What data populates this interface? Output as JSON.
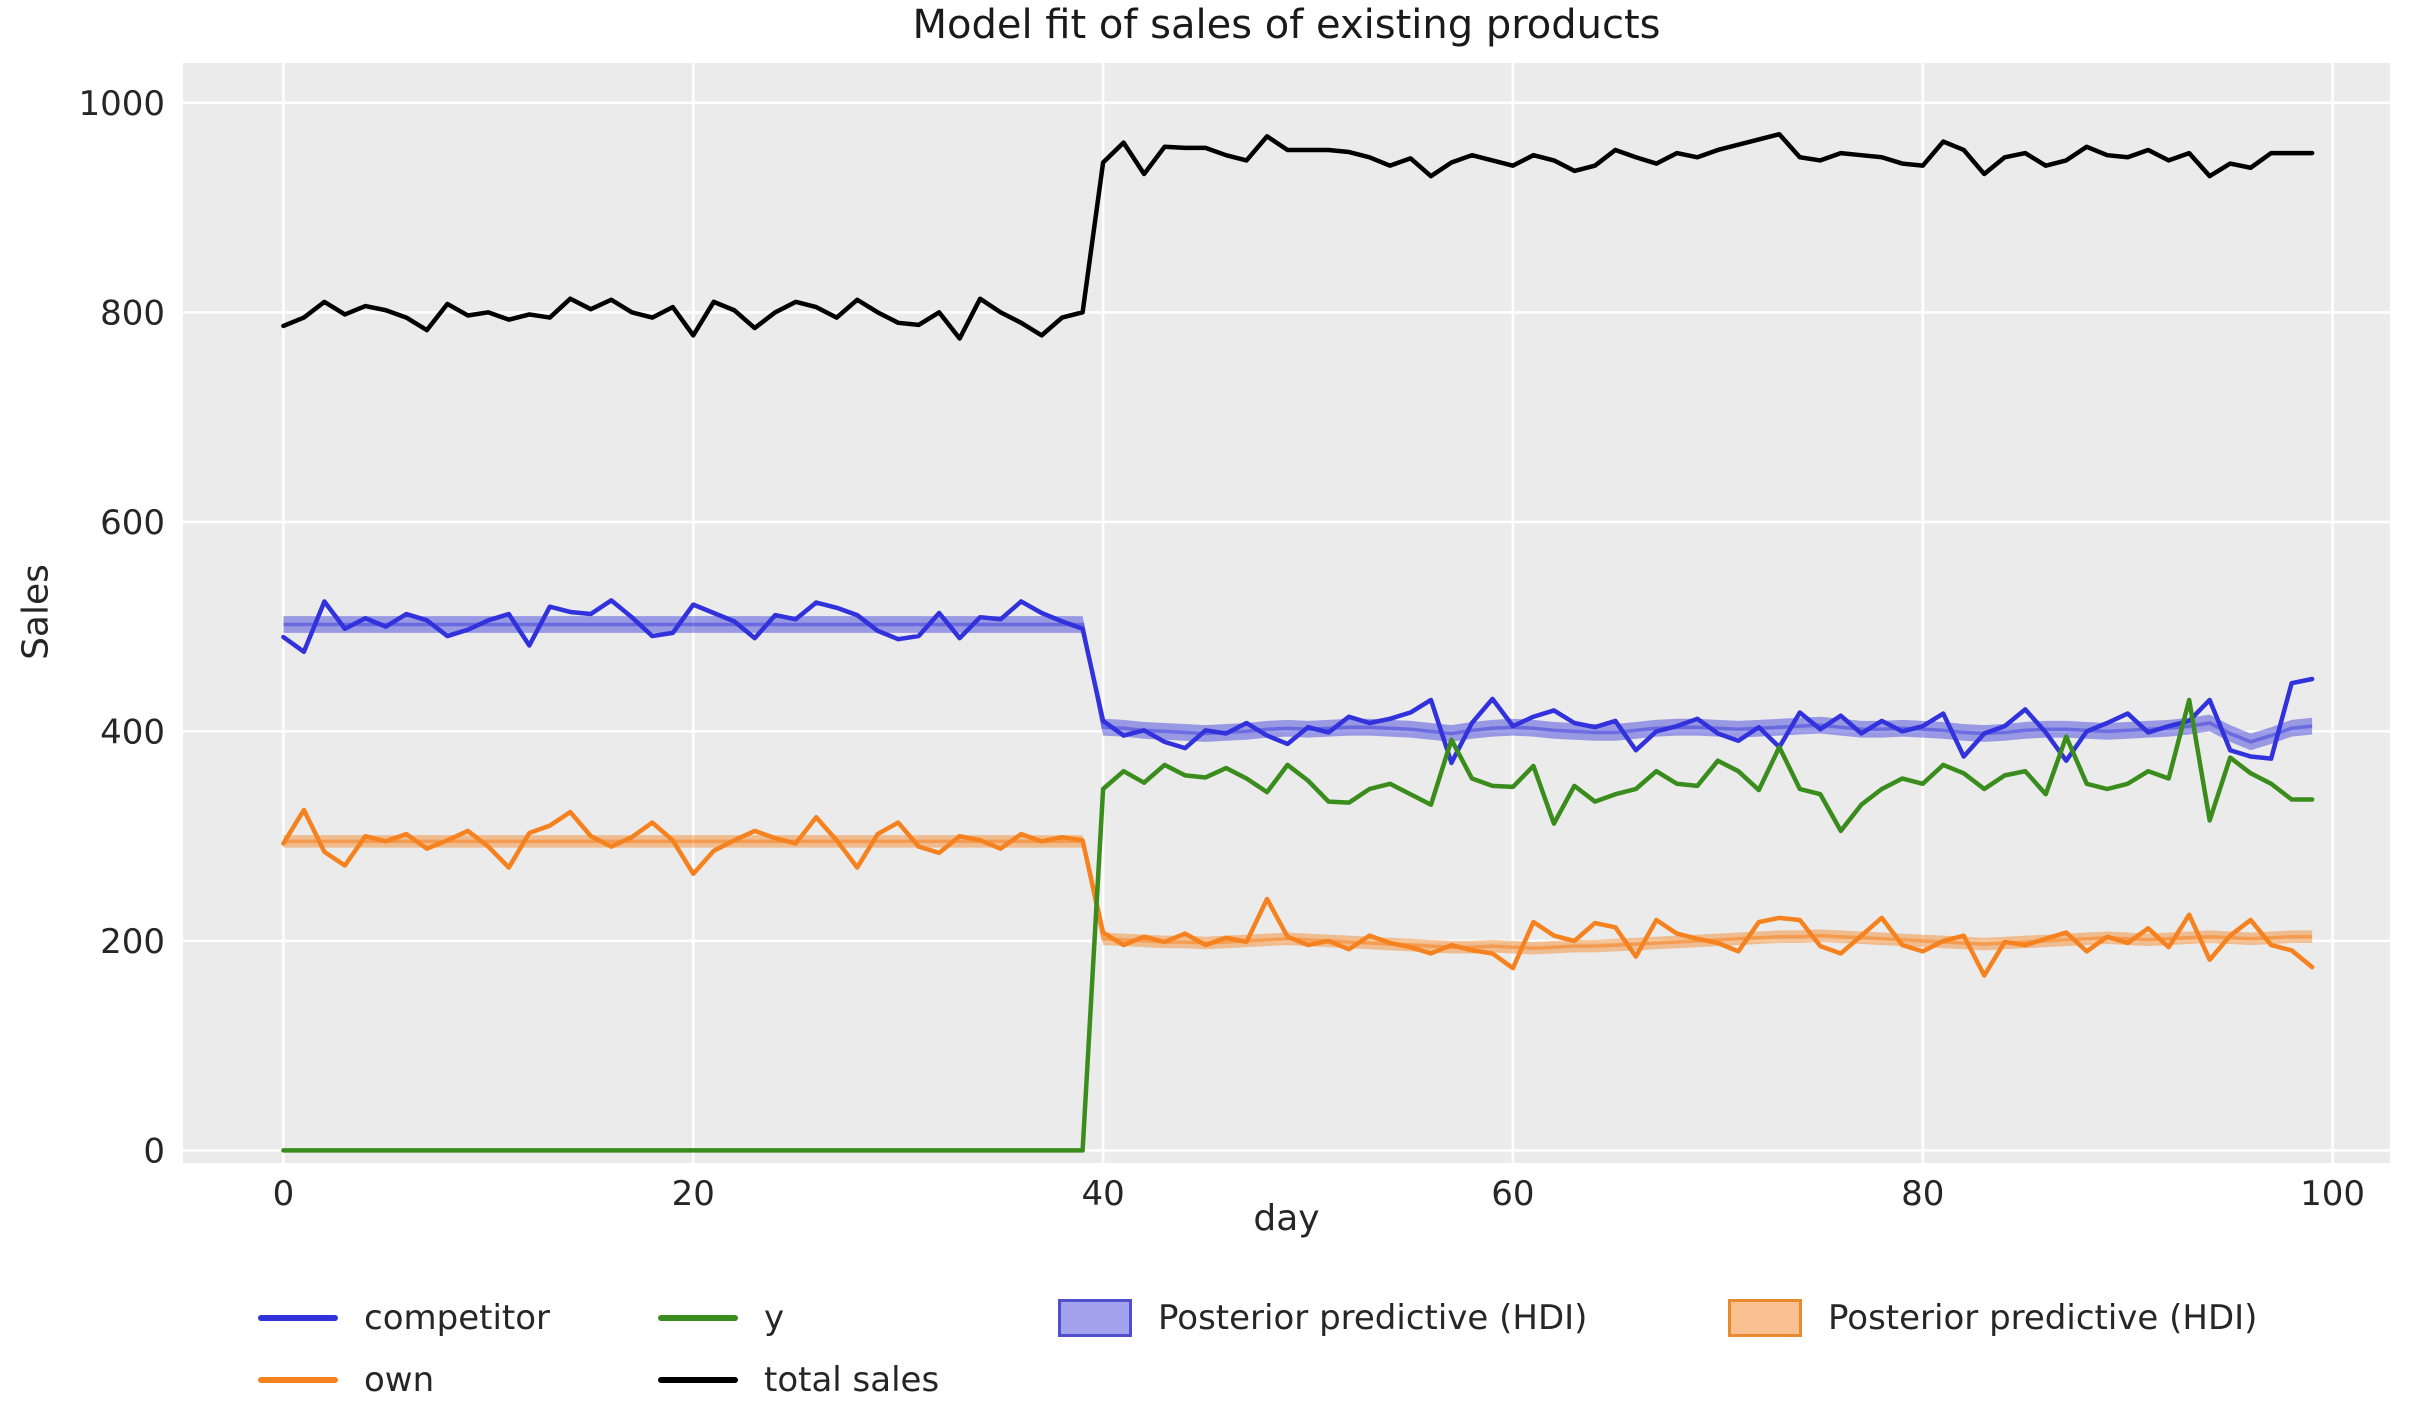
{
  "title": "Model fit of sales of existing products",
  "chart_data": {
    "type": "line",
    "title": "Model fit of sales of existing products",
    "xlabel": "day",
    "ylabel": "Sales",
    "x_ticks": [
      0,
      20,
      40,
      60,
      80,
      100
    ],
    "y_ticks": [
      0,
      200,
      400,
      600,
      800,
      1000
    ],
    "xlim": [
      -4.9,
      102.8
    ],
    "ylim": [
      -12,
      1038
    ],
    "grid": true,
    "legend_position": "below",
    "colors": {
      "plot_bg": "#ebebeb",
      "grid": "#ffffff",
      "text": "#262626",
      "title": "#1a1a1a"
    },
    "x": [
      0,
      1,
      2,
      3,
      4,
      5,
      6,
      7,
      8,
      9,
      10,
      11,
      12,
      13,
      14,
      15,
      16,
      17,
      18,
      19,
      20,
      21,
      22,
      23,
      24,
      25,
      26,
      27,
      28,
      29,
      30,
      31,
      32,
      33,
      34,
      35,
      36,
      37,
      38,
      39,
      40,
      41,
      42,
      43,
      44,
      45,
      46,
      47,
      48,
      49,
      50,
      51,
      52,
      53,
      54,
      55,
      56,
      57,
      58,
      59,
      60,
      61,
      62,
      63,
      64,
      65,
      66,
      67,
      68,
      69,
      70,
      71,
      72,
      73,
      74,
      75,
      76,
      77,
      78,
      79,
      80,
      81,
      82,
      83,
      84,
      85,
      86,
      87,
      88,
      89,
      90,
      91,
      92,
      93,
      94,
      95,
      96,
      97,
      98,
      99
    ],
    "series": [
      {
        "name": "competitor",
        "color": "#3232dd",
        "values": [
          490,
          476,
          524,
          498,
          508,
          500,
          512,
          506,
          491,
          497,
          506,
          512,
          482,
          519,
          514,
          512,
          525,
          509,
          491,
          494,
          521,
          513,
          505,
          489,
          511,
          507,
          523,
          518,
          511,
          496,
          488,
          491,
          513,
          489,
          509,
          507,
          524,
          513,
          505,
          498,
          410,
          396,
          401,
          390,
          384,
          401,
          398,
          408,
          396,
          388,
          404,
          399,
          414,
          408,
          412,
          418,
          430,
          370,
          408,
          431,
          405,
          414,
          420,
          408,
          404,
          410,
          382,
          400,
          405,
          412,
          398,
          391,
          404,
          385,
          418,
          402,
          415,
          398,
          410,
          400,
          405,
          417,
          376,
          398,
          405,
          421,
          399,
          372,
          400,
          408,
          417,
          399,
          405,
          410,
          430,
          382,
          376,
          374,
          446,
          450
        ]
      },
      {
        "name": "own",
        "color": "#f5821f",
        "values": [
          293,
          325,
          285,
          272,
          300,
          295,
          302,
          288,
          296,
          305,
          290,
          270,
          303,
          310,
          323,
          300,
          290,
          299,
          313,
          296,
          264,
          286,
          296,
          305,
          298,
          293,
          318,
          296,
          270,
          302,
          313,
          290,
          284,
          300,
          296,
          288,
          302,
          295,
          299,
          296,
          208,
          196,
          204,
          199,
          207,
          196,
          203,
          199,
          240,
          204,
          196,
          200,
          192,
          205,
          198,
          194,
          188,
          196,
          191,
          188,
          174,
          218,
          205,
          200,
          217,
          213,
          185,
          220,
          207,
          202,
          198,
          190,
          218,
          222,
          220,
          195,
          188,
          205,
          222,
          196,
          190,
          200,
          205,
          167,
          199,
          196,
          202,
          208,
          190,
          204,
          198,
          212,
          194,
          225,
          182,
          205,
          220,
          196,
          191,
          175
        ]
      },
      {
        "name": "y",
        "color": "#3a8c1d",
        "values": [
          0,
          0,
          0,
          0,
          0,
          0,
          0,
          0,
          0,
          0,
          0,
          0,
          0,
          0,
          0,
          0,
          0,
          0,
          0,
          0,
          0,
          0,
          0,
          0,
          0,
          0,
          0,
          0,
          0,
          0,
          0,
          0,
          0,
          0,
          0,
          0,
          0,
          0,
          0,
          0,
          345,
          362,
          351,
          368,
          358,
          356,
          365,
          355,
          342,
          368,
          353,
          333,
          332,
          345,
          350,
          340,
          330,
          392,
          355,
          348,
          347,
          367,
          312,
          348,
          333,
          340,
          345,
          362,
          350,
          348,
          372,
          362,
          344,
          385,
          345,
          340,
          305,
          330,
          345,
          355,
          350,
          368,
          360,
          345,
          358,
          362,
          340,
          395,
          350,
          345,
          350,
          362,
          355,
          430,
          315,
          375,
          360,
          350,
          335,
          335
        ]
      },
      {
        "name": "total sales",
        "color": "#000000",
        "values": [
          787,
          795,
          810,
          798,
          806,
          802,
          795,
          783,
          808,
          797,
          800,
          793,
          798,
          795,
          813,
          803,
          812,
          800,
          795,
          805,
          778,
          810,
          802,
          785,
          800,
          810,
          805,
          795,
          812,
          800,
          790,
          788,
          800,
          775,
          813,
          800,
          790,
          778,
          795,
          800,
          943,
          962,
          932,
          958,
          957,
          957,
          950,
          945,
          968,
          955,
          955,
          955,
          953,
          948,
          940,
          947,
          930,
          943,
          950,
          945,
          940,
          950,
          945,
          935,
          940,
          955,
          948,
          942,
          952,
          948,
          955,
          960,
          965,
          970,
          948,
          945,
          952,
          950,
          948,
          942,
          940,
          963,
          955,
          932,
          948,
          952,
          940,
          945,
          958,
          950,
          948,
          955,
          945,
          952,
          930,
          942,
          938,
          952,
          952,
          952
        ]
      }
    ],
    "bands": [
      {
        "label": "Posterior predictive (HDI)",
        "color": "#4646dc",
        "fill_opacity": 0.5,
        "half_width": 8,
        "center": [
          502,
          502,
          502,
          502,
          502,
          502,
          502,
          502,
          502,
          502,
          502,
          502,
          502,
          502,
          502,
          502,
          502,
          502,
          502,
          502,
          502,
          502,
          502,
          502,
          502,
          502,
          502,
          502,
          502,
          502,
          502,
          502,
          502,
          502,
          502,
          502,
          502,
          502,
          502,
          502,
          404,
          403,
          401,
          400,
          399,
          398,
          399,
          400,
          402,
          403,
          402,
          403,
          404,
          404,
          403,
          402,
          400,
          398,
          401,
          403,
          404,
          403,
          401,
          400,
          399,
          399,
          401,
          403,
          404,
          404,
          403,
          402,
          403,
          404,
          405,
          406,
          404,
          402,
          402,
          403,
          402,
          401,
          399,
          398,
          399,
          401,
          402,
          402,
          401,
          400,
          401,
          402,
          403,
          405,
          408,
          398,
          390,
          396,
          403,
          405
        ]
      },
      {
        "label": "Posterior predictive (HDI)",
        "color": "#f5821f",
        "fill_opacity": 0.45,
        "half_width": 6,
        "center": [
          295,
          295,
          295,
          295,
          295,
          295,
          295,
          295,
          295,
          295,
          295,
          295,
          295,
          295,
          295,
          295,
          295,
          295,
          295,
          295,
          295,
          295,
          295,
          295,
          295,
          295,
          295,
          295,
          295,
          295,
          295,
          295,
          295,
          295,
          295,
          295,
          295,
          295,
          295,
          295,
          202,
          201,
          200,
          199,
          199,
          198,
          199,
          200,
          201,
          202,
          201,
          200,
          199,
          198,
          197,
          196,
          195,
          194,
          194,
          195,
          194,
          193,
          194,
          195,
          195,
          196,
          197,
          198,
          199,
          200,
          201,
          202,
          203,
          204,
          204,
          205,
          204,
          203,
          202,
          201,
          200,
          199,
          198,
          197,
          198,
          199,
          200,
          201,
          202,
          203,
          202,
          201,
          202,
          203,
          204,
          203,
          202,
          203,
          204,
          204
        ]
      }
    ]
  },
  "legend": {
    "items": [
      {
        "label": "competitor",
        "swatch": "line",
        "color": "#3232dd"
      },
      {
        "label": "own",
        "swatch": "line",
        "color": "#f5821f"
      },
      {
        "label": "y",
        "swatch": "line",
        "color": "#3a8c1d"
      },
      {
        "label": "total sales",
        "swatch": "line",
        "color": "#000000"
      },
      {
        "label": "Posterior predictive (HDI)",
        "swatch": "patch",
        "color": "#4646dc",
        "border": "#5050cf"
      },
      {
        "label": "Posterior predictive (HDI)",
        "swatch": "patch",
        "color": "#f5821f",
        "border": "#e88a30"
      }
    ]
  }
}
